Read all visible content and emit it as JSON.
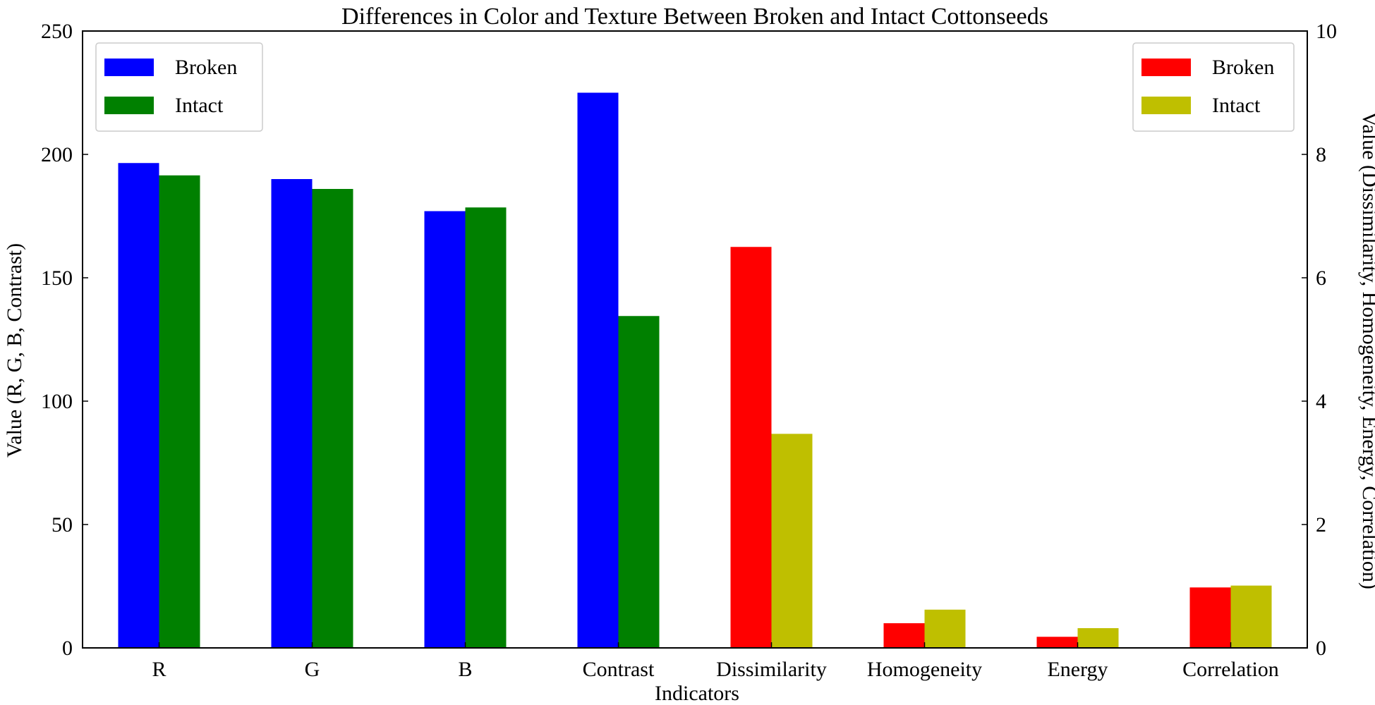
{
  "chart_data": {
    "type": "bar",
    "title": "Differences in Color and Texture  Between Broken and Intact Cottonseeds",
    "xlabel": "Indicators",
    "ylabel_left": "Value (R, G, B, Contrast)",
    "ylabel_right": "Value (Dissimilarity, Homogeneity, Energy, Correlation)",
    "categories": [
      "R",
      "G",
      "B",
      "Contrast",
      "Dissimilarity",
      "Homogeneity",
      "Energy",
      "Correlation"
    ],
    "left_axis": {
      "ylim": [
        0,
        250
      ],
      "ticks": [
        "0",
        "50",
        "100",
        "150",
        "200",
        "250"
      ],
      "categories": [
        "R",
        "G",
        "B",
        "Contrast"
      ],
      "series": [
        {
          "name": "Broken",
          "color": "#0000ff",
          "values": [
            196.5,
            190,
            177,
            225
          ]
        },
        {
          "name": "Intact",
          "color": "#008000",
          "values": [
            191.5,
            186,
            178.5,
            134.5
          ]
        }
      ],
      "legend_position": "top-left"
    },
    "right_axis": {
      "ylim": [
        0,
        10
      ],
      "ticks": [
        "0",
        "2",
        "4",
        "6",
        "8",
        "10"
      ],
      "categories": [
        "Dissimilarity",
        "Homogeneity",
        "Energy",
        "Correlation"
      ],
      "series": [
        {
          "name": "Broken",
          "color": "#ff0000",
          "values": [
            6.5,
            0.4,
            0.18,
            0.98
          ]
        },
        {
          "name": "Intact",
          "color": "#bfbf00",
          "values": [
            3.47,
            0.62,
            0.32,
            1.01
          ]
        }
      ],
      "legend_position": "top-right"
    },
    "grid": false
  }
}
